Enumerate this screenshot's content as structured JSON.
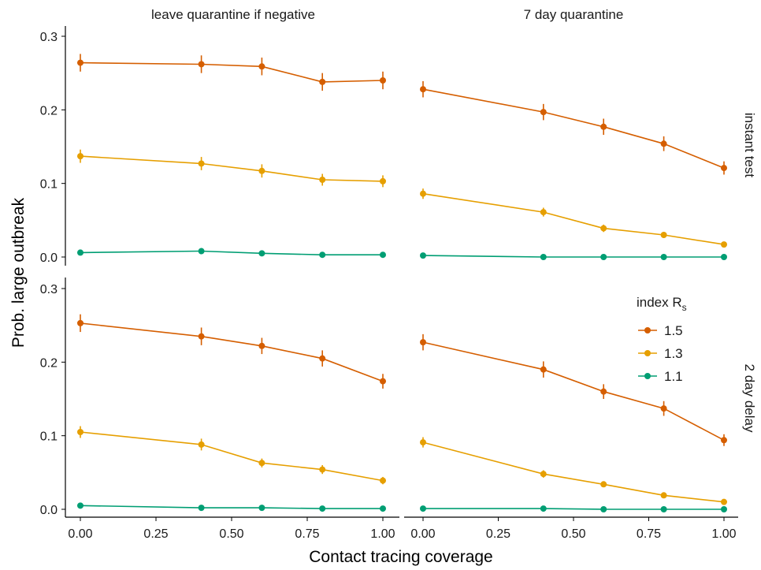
{
  "chart_data": {
    "type": "line",
    "xlabel": "Contact tracing coverage",
    "ylabel": "Prob. large outbreak",
    "xlim": [
      0,
      1
    ],
    "ylim": [
      0,
      0.3
    ],
    "x_ticks": [
      "0.00",
      "0.25",
      "0.50",
      "0.75",
      "1.00"
    ],
    "y_ticks": [
      "0.0",
      "0.1",
      "0.2",
      "0.3"
    ],
    "column_facets": [
      "leave quarantine if negative",
      "7 day quarantine"
    ],
    "row_facets": [
      "instant test",
      "2 day delay"
    ],
    "legend": {
      "title_main": "index R",
      "title_sub": "s",
      "position": "right",
      "entries": [
        "1.5",
        "1.3",
        "1.1"
      ]
    },
    "series_colors": {
      "1.5": "#D55E00",
      "1.3": "#E69F00",
      "1.1": "#009E73"
    },
    "x": [
      0,
      0.4,
      0.6,
      0.8,
      1.0
    ],
    "panels": [
      {
        "column": "leave quarantine if negative",
        "row": "instant test",
        "series": [
          {
            "name": "1.5",
            "values": [
              0.264,
              0.262,
              0.259,
              0.238,
              0.24
            ],
            "err": [
              0.012,
              0.012,
              0.012,
              0.012,
              0.012
            ]
          },
          {
            "name": "1.3",
            "values": [
              0.137,
              0.127,
              0.117,
              0.105,
              0.103
            ],
            "err": [
              0.009,
              0.009,
              0.009,
              0.008,
              0.008
            ]
          },
          {
            "name": "1.1",
            "values": [
              0.006,
              0.008,
              0.005,
              0.003,
              0.003
            ],
            "err": [
              0.0015,
              0.0015,
              0.0015,
              0.001,
              0.001
            ]
          }
        ]
      },
      {
        "column": "7 day quarantine",
        "row": "instant test",
        "series": [
          {
            "name": "1.5",
            "values": [
              0.228,
              0.197,
              0.177,
              0.154,
              0.121
            ],
            "err": [
              0.011,
              0.011,
              0.011,
              0.01,
              0.009
            ]
          },
          {
            "name": "1.3",
            "values": [
              0.086,
              0.061,
              0.039,
              0.03,
              0.017
            ],
            "err": [
              0.007,
              0.006,
              0.005,
              0.004,
              0.003
            ]
          },
          {
            "name": "1.1",
            "values": [
              0.002,
              0.0,
              0.0,
              0.0,
              0.0
            ],
            "err": [
              0.001,
              0.0005,
              0.0005,
              0.0005,
              0.0005
            ]
          }
        ]
      },
      {
        "column": "leave quarantine if negative",
        "row": "2 day delay",
        "series": [
          {
            "name": "1.5",
            "values": [
              0.253,
              0.235,
              0.222,
              0.205,
              0.174
            ],
            "err": [
              0.012,
              0.012,
              0.011,
              0.011,
              0.01
            ]
          },
          {
            "name": "1.3",
            "values": [
              0.105,
              0.088,
              0.063,
              0.054,
              0.039
            ],
            "err": [
              0.008,
              0.008,
              0.006,
              0.006,
              0.005
            ]
          },
          {
            "name": "1.1",
            "values": [
              0.005,
              0.002,
              0.002,
              0.001,
              0.001
            ],
            "err": [
              0.0015,
              0.001,
              0.001,
              0.0005,
              0.0005
            ]
          }
        ]
      },
      {
        "column": "7 day quarantine",
        "row": "2 day delay",
        "series": [
          {
            "name": "1.5",
            "values": [
              0.227,
              0.19,
              0.16,
              0.137,
              0.094
            ],
            "err": [
              0.011,
              0.011,
              0.01,
              0.01,
              0.008
            ]
          },
          {
            "name": "1.3",
            "values": [
              0.091,
              0.048,
              0.034,
              0.019,
              0.01
            ],
            "err": [
              0.007,
              0.005,
              0.004,
              0.003,
              0.002
            ]
          },
          {
            "name": "1.1",
            "values": [
              0.001,
              0.001,
              0.0,
              0.0,
              0.0
            ],
            "err": [
              0.0005,
              0.0005,
              0.0005,
              0.0005,
              0.0005
            ]
          }
        ]
      }
    ]
  }
}
